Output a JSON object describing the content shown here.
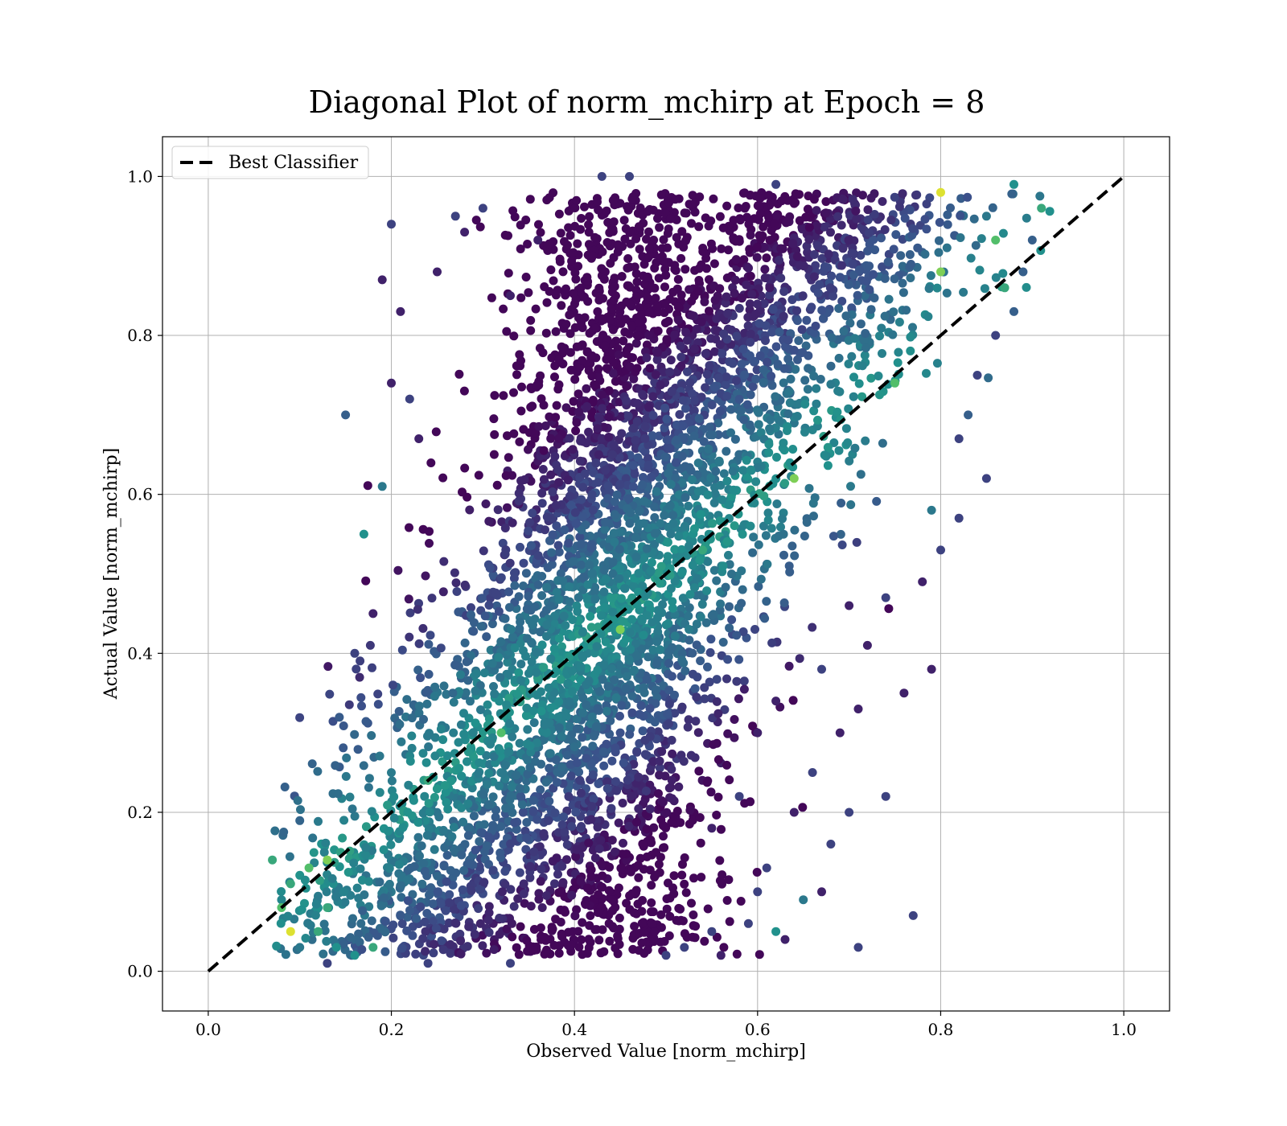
{
  "chart_data": {
    "type": "scatter",
    "title": "Diagonal Plot of norm_mchirp at Epoch = 8",
    "xlabel": "Observed Value [norm_mchirp]",
    "ylabel": "Actual Value [norm_mchirp]",
    "xlim": [
      -0.05,
      1.05
    ],
    "ylim": [
      -0.05,
      1.05
    ],
    "xticks": [
      0.0,
      0.2,
      0.4,
      0.6,
      0.8,
      1.0
    ],
    "yticks": [
      0.0,
      0.2,
      0.4,
      0.6,
      0.8,
      1.0
    ],
    "x_tick_labels": [
      "0.0",
      "0.2",
      "0.4",
      "0.6",
      "0.8",
      "1.0"
    ],
    "y_tick_labels": [
      "0.0",
      "0.2",
      "0.4",
      "0.6",
      "0.8",
      "1.0"
    ],
    "grid": true,
    "legend_position": "top-left",
    "colormap": "viridis",
    "reference_line": {
      "name": "Best Classifier",
      "x": [
        0.0,
        1.0
      ],
      "y": [
        0.0,
        1.0
      ],
      "style": "dashed",
      "color": "#000000"
    },
    "series": [
      {
        "points": [
          [
            0.2,
            0.94,
            0.2
          ],
          [
            0.15,
            0.7,
            0.3
          ],
          [
            0.19,
            0.87,
            0.1
          ],
          [
            0.2,
            0.74,
            0.1
          ],
          [
            0.17,
            0.55,
            0.5
          ],
          [
            0.21,
            0.83,
            0.1
          ],
          [
            0.07,
            0.14,
            0.6
          ],
          [
            0.09,
            0.05,
            0.95
          ],
          [
            0.08,
            0.08,
            0.7
          ],
          [
            0.13,
            0.01,
            0.2
          ],
          [
            0.24,
            0.01,
            0.2
          ],
          [
            0.33,
            0.01,
            0.2
          ],
          [
            0.91,
            0.96,
            0.6
          ],
          [
            0.9,
            0.92,
            0.3
          ],
          [
            0.88,
            0.99,
            0.5
          ],
          [
            0.8,
            0.98,
            0.95
          ],
          [
            0.8,
            0.88,
            0.8
          ],
          [
            0.85,
            0.62,
            0.2
          ],
          [
            0.77,
            0.07,
            0.2
          ],
          [
            0.71,
            0.03,
            0.2
          ],
          [
            0.65,
            0.09,
            0.4
          ],
          [
            0.63,
            0.04,
            0.1
          ],
          [
            0.62,
            0.05,
            0.5
          ],
          [
            0.79,
            0.38,
            0.1
          ],
          [
            0.76,
            0.35,
            0.1
          ],
          [
            0.74,
            0.22,
            0.2
          ],
          [
            0.7,
            0.2,
            0.2
          ],
          [
            0.45,
            0.43,
            0.8
          ],
          [
            0.59,
            0.06,
            0.2
          ],
          [
            0.56,
            0.02,
            0.1
          ],
          [
            0.43,
            1.0,
            0.2
          ],
          [
            0.46,
            1.0,
            0.2
          ],
          [
            0.27,
            0.95,
            0.2
          ],
          [
            0.28,
            0.93,
            0.1
          ],
          [
            0.3,
            0.96,
            0.2
          ],
          [
            0.62,
            0.99,
            0.2
          ],
          [
            0.82,
            0.57,
            0.2
          ],
          [
            0.82,
            0.67,
            0.2
          ],
          [
            0.86,
            0.8,
            0.2
          ],
          [
            0.88,
            0.83,
            0.3
          ],
          [
            0.89,
            0.88,
            0.3
          ],
          [
            0.68,
            0.16,
            0.2
          ],
          [
            0.67,
            0.1,
            0.1
          ],
          [
            0.61,
            0.13,
            0.2
          ],
          [
            0.6,
            0.1,
            0.2
          ],
          [
            0.5,
            0.02,
            0.2
          ],
          [
            0.52,
            0.03,
            0.2
          ],
          [
            0.55,
            0.05,
            0.2
          ],
          [
            0.1,
            0.03,
            0.4
          ],
          [
            0.12,
            0.05,
            0.6
          ],
          [
            0.14,
            0.03,
            0.5
          ],
          [
            0.16,
            0.02,
            0.5
          ],
          [
            0.18,
            0.03,
            0.6
          ],
          [
            0.11,
            0.13,
            0.7
          ],
          [
            0.13,
            0.14,
            0.8
          ],
          [
            0.13,
            0.08,
            0.6
          ],
          [
            0.09,
            0.11,
            0.6
          ],
          [
            0.36,
            0.92,
            0.1
          ],
          [
            0.33,
            0.85,
            0.1
          ],
          [
            0.25,
            0.88,
            0.1
          ],
          [
            0.23,
            0.67,
            0.1
          ],
          [
            0.22,
            0.72,
            0.2
          ],
          [
            0.19,
            0.61,
            0.4
          ],
          [
            0.18,
            0.45,
            0.1
          ],
          [
            0.16,
            0.4,
            0.2
          ],
          [
            0.64,
            0.62,
            0.8
          ],
          [
            0.54,
            0.53,
            0.6
          ],
          [
            0.32,
            0.3,
            0.7
          ],
          [
            0.24,
            0.24,
            0.6
          ],
          [
            0.75,
            0.74,
            0.7
          ],
          [
            0.7,
            0.46,
            0.1
          ],
          [
            0.72,
            0.41,
            0.1
          ],
          [
            0.69,
            0.3,
            0.1
          ],
          [
            0.66,
            0.25,
            0.2
          ],
          [
            0.64,
            0.2,
            0.1
          ],
          [
            0.6,
            0.3,
            0.1
          ],
          [
            0.58,
            0.22,
            0.2
          ],
          [
            0.55,
            0.18,
            0.1
          ],
          [
            0.62,
            0.34,
            0.1
          ],
          [
            0.67,
            0.38,
            0.2
          ],
          [
            0.71,
            0.33,
            0.1
          ],
          [
            0.74,
            0.47,
            0.2
          ],
          [
            0.78,
            0.49,
            0.1
          ],
          [
            0.8,
            0.53,
            0.2
          ],
          [
            0.79,
            0.58,
            0.4
          ],
          [
            0.83,
            0.7,
            0.3
          ],
          [
            0.84,
            0.75,
            0.2
          ],
          [
            0.85,
            0.95,
            0.4
          ],
          [
            0.86,
            0.92,
            0.7
          ],
          [
            0.87,
            0.86,
            0.6
          ]
        ]
      }
    ]
  }
}
